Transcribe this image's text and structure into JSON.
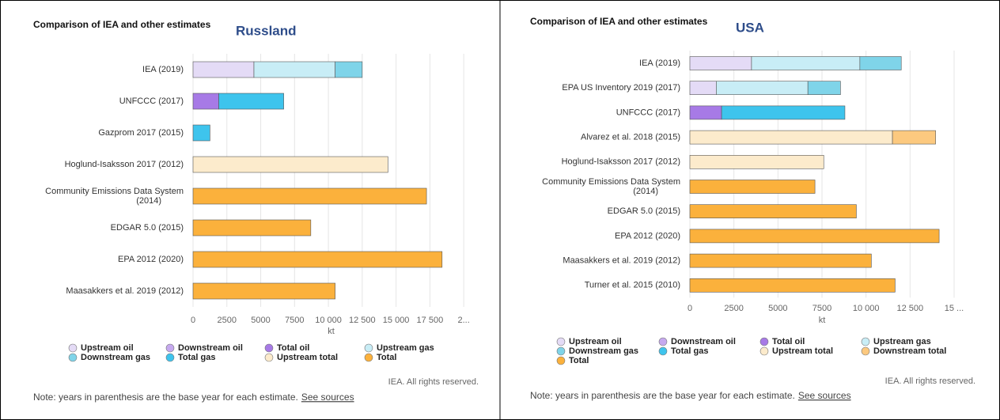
{
  "chart_data": [
    {
      "type": "bar",
      "orientation": "horizontal",
      "stacked": true,
      "title": "Comparison of IEA and other estimates",
      "subtitle": "Russland",
      "xlabel": "kt",
      "credit": "IEA. All rights reserved.",
      "note": "Note: years in parenthesis are the base year for each estimate.",
      "link": "See sources",
      "categories": [
        "IEA (2019)",
        "UNFCCC (2017)",
        "Gazprom 2017 (2015)",
        "Hoglund-Isaksson 2017 (2012)",
        "Community Emissions Data System (2014)",
        "EDGAR 5.0 (2015)",
        "EPA 2012 (2020)",
        "Maasakkers et al. 2019 (2012)"
      ],
      "series": [
        {
          "name": "Upstream oil",
          "color": "#e4dbf6",
          "values": [
            4500,
            null,
            null,
            null,
            null,
            null,
            null,
            null
          ]
        },
        {
          "name": "Downstream oil",
          "color": "#c6a9ef",
          "values": [
            null,
            null,
            null,
            null,
            null,
            null,
            null,
            null
          ]
        },
        {
          "name": "Total oil",
          "color": "#a77ae6",
          "values": [
            null,
            1900,
            null,
            null,
            null,
            null,
            null,
            null
          ]
        },
        {
          "name": "Upstream gas",
          "color": "#c8edf6",
          "values": [
            6000,
            null,
            null,
            null,
            null,
            null,
            null,
            null
          ]
        },
        {
          "name": "Downstream gas",
          "color": "#7fd4e9",
          "values": [
            2000,
            null,
            null,
            null,
            null,
            null,
            null,
            null
          ]
        },
        {
          "name": "Total gas",
          "color": "#3ec4ed",
          "values": [
            null,
            4800,
            1250,
            null,
            null,
            null,
            null,
            null
          ]
        },
        {
          "name": "Upstream total",
          "color": "#fcebcc",
          "values": [
            null,
            null,
            null,
            14400,
            null,
            null,
            null,
            null
          ]
        },
        {
          "name": "Total",
          "color": "#fbb13c",
          "values": [
            null,
            null,
            null,
            null,
            17250,
            8700,
            18400,
            10500
          ]
        }
      ],
      "xlim": [
        0,
        20400
      ],
      "xticks": [
        0,
        2500,
        5000,
        7500,
        {
          "value": 10000,
          "label": "10 000"
        },
        {
          "value": 12500,
          "label": "12 500"
        },
        {
          "value": 15000,
          "label": "15 000"
        },
        {
          "value": 17500,
          "label": "17 500"
        },
        {
          "value": 20000,
          "label": "2..."
        }
      ],
      "grid": true
    },
    {
      "type": "bar",
      "orientation": "horizontal",
      "stacked": true,
      "title": "Comparison of IEA and other estimates",
      "subtitle": "USA",
      "xlabel": "kt",
      "credit": "IEA. All rights reserved.",
      "note": "Note: years in parenthesis are the base year for each estimate.",
      "link": "See sources",
      "categories": [
        "IEA (2019)",
        "EPA US Inventory 2019 (2017)",
        "UNFCCC (2017)",
        "Alvarez et al. 2018 (2015)",
        "Hoglund-Isaksson 2017 (2012)",
        "Community Emissions Data System (2014)",
        "EDGAR 5.0 (2015)",
        "EPA 2012 (2020)",
        "Maasakkers et al. 2019 (2012)",
        "Turner et al. 2015 (2010)"
      ],
      "series": [
        {
          "name": "Upstream oil",
          "color": "#e4dbf6",
          "values": [
            3500,
            1500,
            null,
            null,
            null,
            null,
            null,
            null,
            null,
            null
          ]
        },
        {
          "name": "Downstream oil",
          "color": "#c6a9ef",
          "values": [
            null,
            null,
            null,
            null,
            null,
            null,
            null,
            null,
            null,
            null
          ]
        },
        {
          "name": "Total oil",
          "color": "#a77ae6",
          "values": [
            null,
            null,
            1800,
            null,
            null,
            null,
            null,
            null,
            null,
            null
          ]
        },
        {
          "name": "Upstream gas",
          "color": "#c8edf6",
          "values": [
            6150,
            5200,
            null,
            null,
            null,
            null,
            null,
            null,
            null,
            null
          ]
        },
        {
          "name": "Downstream gas",
          "color": "#7fd4e9",
          "values": [
            2350,
            1850,
            null,
            null,
            null,
            null,
            null,
            null,
            null,
            null
          ]
        },
        {
          "name": "Total gas",
          "color": "#3ec4ed",
          "values": [
            null,
            null,
            7000,
            null,
            null,
            null,
            null,
            null,
            null,
            null
          ]
        },
        {
          "name": "Upstream total",
          "color": "#fcebcc",
          "values": [
            null,
            null,
            null,
            11500,
            7600,
            null,
            null,
            null,
            null,
            null
          ]
        },
        {
          "name": "Downstream total",
          "color": "#fcc97f",
          "values": [
            null,
            null,
            null,
            2450,
            null,
            null,
            null,
            null,
            null,
            null
          ]
        },
        {
          "name": "Total",
          "color": "#fbb13c",
          "values": [
            null,
            null,
            null,
            null,
            null,
            7100,
            9450,
            14150,
            10300,
            11650
          ]
        }
      ],
      "xlim": [
        0,
        15000
      ],
      "xticks": [
        0,
        2500,
        5000,
        7500,
        {
          "value": 10000,
          "label": "10 000"
        },
        {
          "value": 12500,
          "label": "12 500"
        },
        {
          "value": 15000,
          "label": "15 ..."
        }
      ],
      "grid": true
    }
  ]
}
